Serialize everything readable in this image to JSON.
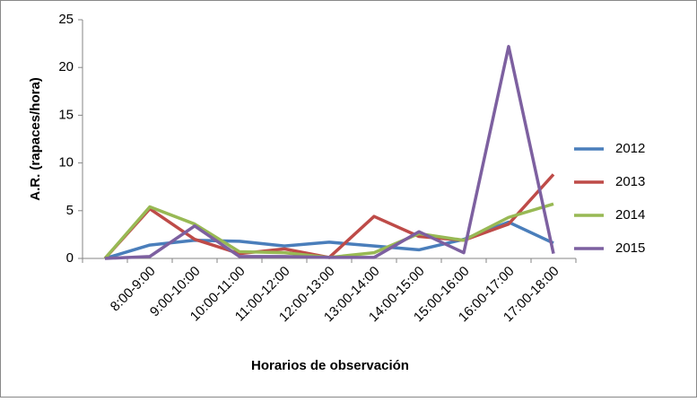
{
  "chart_data": {
    "type": "line",
    "x_label": "Horarios de observación",
    "y_label": "A.R. (rapaces/hora)",
    "categories": [
      null,
      "8:00-9:00",
      "9:00-10:00",
      "10:00-11:00",
      "11:00-12:00",
      "12:00-13:00",
      "13:00-14:00",
      "14:00-15:00",
      "15:00-16:00",
      "16:00-17:00",
      "17:00-18:00"
    ],
    "series": [
      {
        "name": "2012",
        "color": "#4a7ebb",
        "values": [
          0,
          1.4,
          1.9,
          1.8,
          1.3,
          1.7,
          1.3,
          0.9,
          2.0,
          3.8,
          1.6
        ]
      },
      {
        "name": "2013",
        "color": "#be4b48",
        "values": [
          0,
          5.2,
          2.0,
          0.5,
          1.0,
          0.1,
          4.4,
          2.3,
          1.9,
          3.6,
          8.8
        ]
      },
      {
        "name": "2014",
        "color": "#98b954",
        "values": [
          0,
          5.4,
          3.6,
          0.7,
          0.6,
          0.1,
          0.6,
          2.6,
          1.9,
          4.3,
          5.7
        ]
      },
      {
        "name": "2015",
        "color": "#7d60a0",
        "values": [
          0,
          0.2,
          3.4,
          0.2,
          0.2,
          0.1,
          0.1,
          2.8,
          0.6,
          22.2,
          0.5
        ]
      }
    ],
    "ylim": [
      0,
      25
    ],
    "yticks": [
      0,
      5,
      10,
      15,
      20,
      25
    ],
    "legend": "right"
  }
}
